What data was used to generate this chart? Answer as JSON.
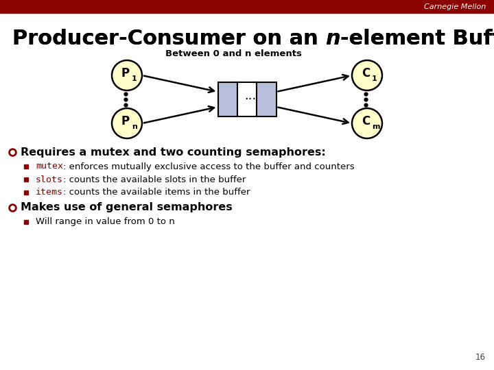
{
  "bg_color": "#ffffff",
  "header_color": "#8b0000",
  "header_text": "Carnegie Mellon",
  "header_text_color": "#ffffff",
  "title_normal": "Producer-Consumer on an ",
  "title_italic": "n",
  "title_rest": "-element Buffer",
  "title_color": "#000000",
  "title_fontsize": 22,
  "diagram": {
    "buffer_label": "Between 0 and n elements",
    "circle_color": "#ffffcc",
    "circle_edge": "#000000",
    "arrow_color": "#000000"
  },
  "bullet1_bold": "Requires a mutex and two counting semaphores:",
  "bullet1_color": "#000000",
  "bullet_marker_color": "#8b0000",
  "sub1_code": "mutex",
  "sub1_rest": ": enforces mutually exclusive access to the buffer and counters",
  "sub2_code": "slots",
  "sub2_rest": ": counts the available slots in the buffer",
  "sub3_code": "items",
  "sub3_rest": ": counts the available items in the buffer",
  "bullet2_bold": "Makes use of general semaphores",
  "sub4_text": "Will range in value from 0 to n",
  "page_num": "16",
  "code_color": "#8b0000",
  "text_color": "#000000"
}
